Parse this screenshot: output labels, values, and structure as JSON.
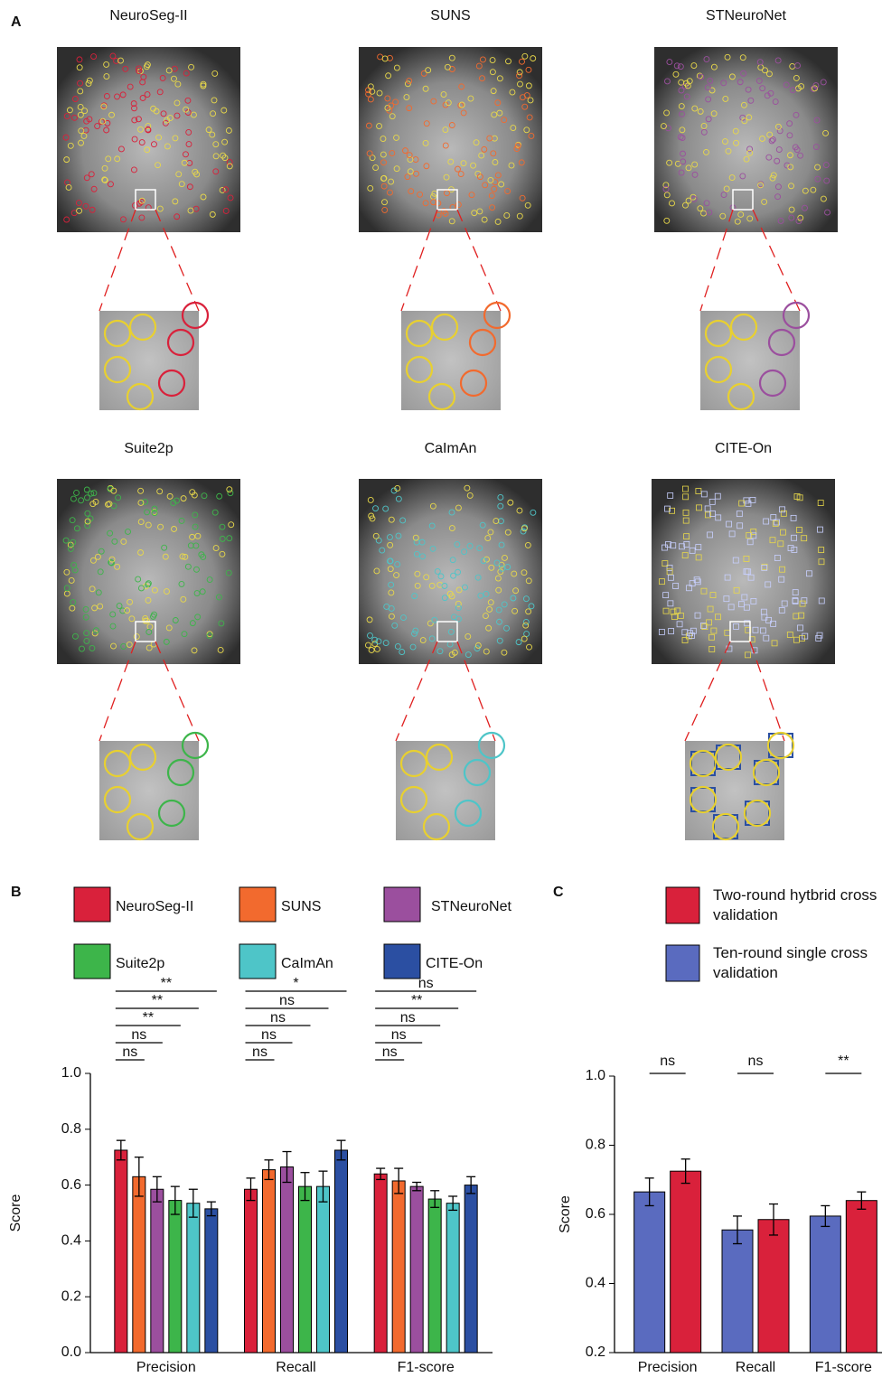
{
  "panel_labels": [
    "A",
    "B",
    "C"
  ],
  "panel_a": {
    "titles": [
      "NeuroSeg-II",
      "SUNS",
      "STNeuroNet",
      "Suite2p",
      "CaImAn",
      "CITE-On"
    ]
  },
  "chart_data": [
    {
      "type": "bar",
      "ylabel": "Score",
      "categories": [
        "Precision",
        "Recall",
        "F1-score"
      ],
      "ylim": [
        0,
        1
      ],
      "yticks": [
        {
          "value": 0,
          "label": "0.0"
        },
        0.2,
        0.4,
        0.6,
        0.8,
        {
          "value": 1,
          "label": "1.0"
        }
      ],
      "series": [
        {
          "name": "NeuroSeg-II",
          "color": "#d9213b",
          "values": [
            0.725,
            0.585,
            0.64
          ],
          "errors": [
            0.035,
            0.04,
            0.02
          ]
        },
        {
          "name": "SUNS",
          "color": "#f26a2e",
          "values": [
            0.63,
            0.655,
            0.615
          ],
          "errors": [
            0.07,
            0.035,
            0.045
          ]
        },
        {
          "name": "STNeuroNet",
          "color": "#9b4f9e",
          "values": [
            0.585,
            0.665,
            0.595
          ],
          "errors": [
            0.045,
            0.055,
            0.015
          ]
        },
        {
          "name": "Suite2p",
          "color": "#3db54a",
          "values": [
            0.545,
            0.595,
            0.55
          ],
          "errors": [
            0.05,
            0.05,
            0.03
          ]
        },
        {
          "name": "CaImAn",
          "color": "#4ec5c8",
          "values": [
            0.535,
            0.595,
            0.535
          ],
          "errors": [
            0.05,
            0.055,
            0.025
          ]
        },
        {
          "name": "CITE-On",
          "color": "#2b4fa2",
          "values": [
            0.515,
            0.725,
            0.6
          ],
          "errors": [
            0.025,
            0.035,
            0.03
          ]
        }
      ],
      "significance": [
        [
          "ns",
          "ns",
          "**",
          "**",
          "**"
        ],
        [
          "ns",
          "ns",
          "ns",
          "ns",
          "*"
        ],
        [
          "ns",
          "ns",
          "ns",
          "**",
          "ns"
        ]
      ]
    },
    {
      "type": "bar",
      "ylabel": "Score",
      "categories": [
        "Precision",
        "Recall",
        "F1-score"
      ],
      "ylim": [
        0.2,
        1
      ],
      "yticks": [
        0.2,
        0.4,
        0.6,
        0.8,
        {
          "value": 1,
          "label": "1.0"
        }
      ],
      "series": [
        {
          "name": "Ten-round single cross validation",
          "color": "#5a6bbf",
          "values": [
            0.665,
            0.555,
            0.595
          ],
          "errors": [
            0.04,
            0.04,
            0.03
          ]
        },
        {
          "name": "Two-round hytbrid cross validation",
          "color": "#d9213b",
          "values": [
            0.725,
            0.585,
            0.64
          ],
          "errors": [
            0.035,
            0.045,
            0.025
          ]
        }
      ],
      "significance": [
        "ns",
        "ns",
        "**"
      ]
    }
  ]
}
